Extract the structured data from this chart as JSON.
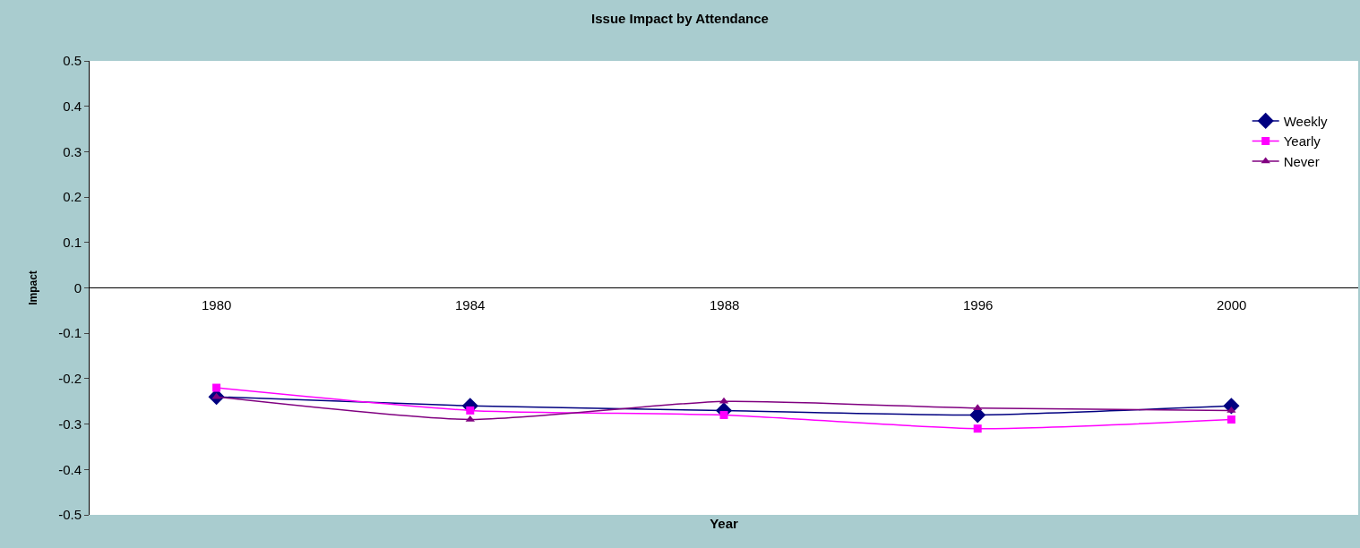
{
  "chart_data": {
    "type": "line",
    "title": "Issue Impact by Attendance",
    "xlabel": "Year",
    "ylabel": "Impact",
    "categories": [
      "1980",
      "1984",
      "1988",
      "1996",
      "2000"
    ],
    "series": [
      {
        "name": "Weekly",
        "color": "#000080",
        "marker": "diamond",
        "values": [
          -0.24,
          -0.26,
          -0.27,
          -0.28,
          -0.26
        ]
      },
      {
        "name": "Yearly",
        "color": "#ff00ff",
        "marker": "square",
        "values": [
          -0.22,
          -0.27,
          -0.28,
          -0.31,
          -0.29
        ]
      },
      {
        "name": "Never",
        "color": "#800080",
        "marker": "triangle",
        "values": [
          -0.24,
          -0.29,
          -0.25,
          -0.265,
          -0.27
        ]
      }
    ],
    "ylim": [
      -0.5,
      0.5
    ],
    "yticks": [
      -0.5,
      -0.4,
      -0.3,
      -0.2,
      -0.1,
      0,
      0.1,
      0.2,
      0.3,
      0.4,
      0.5
    ],
    "legend": "top right",
    "line_style": "solid"
  }
}
